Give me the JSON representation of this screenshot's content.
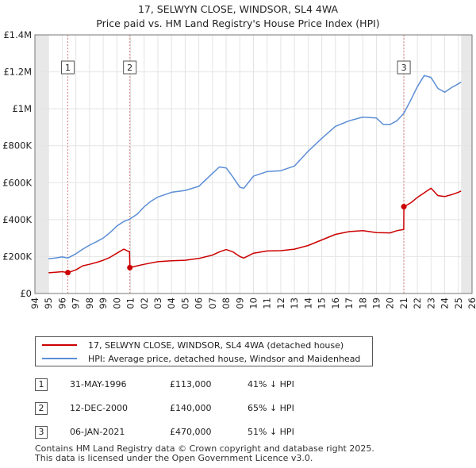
{
  "chart_data": {
    "type": "line",
    "title": "17, SELWYN CLOSE, WINDSOR, SL4 4WA",
    "subtitle": "Price paid vs. HM Land Registry's House Price Index (HPI)",
    "xlim": [
      1994,
      2026
    ],
    "ylim": [
      0,
      1400000
    ],
    "xticks": [
      "1994",
      "1995",
      "1996",
      "1997",
      "1998",
      "1999",
      "2000",
      "2001",
      "2002",
      "2003",
      "2004",
      "2005",
      "2006",
      "2007",
      "2008",
      "2009",
      "2010",
      "2011",
      "2012",
      "2013",
      "2014",
      "2015",
      "2016",
      "2017",
      "2018",
      "2019",
      "2020",
      "2021",
      "2022",
      "2023",
      "2024",
      "2025",
      "2026"
    ],
    "yticks": [
      {
        "value": 0,
        "label": "£0"
      },
      {
        "value": 200000,
        "label": "£200K"
      },
      {
        "value": 400000,
        "label": "£400K"
      },
      {
        "value": 600000,
        "label": "£600K"
      },
      {
        "value": 800000,
        "label": "£800K"
      },
      {
        "value": 1000000,
        "label": "£1M"
      },
      {
        "value": 1200000,
        "label": "£1.2M"
      },
      {
        "value": 1400000,
        "label": "£1.4M"
      }
    ],
    "data_start": 1995.0,
    "data_end": 2025.2,
    "series": [
      {
        "name": "17, SELWYN CLOSE, WINDSOR, SL4 4WA (detached house)",
        "color": "#cc0000",
        "x": [
          1995.0,
          1995.5,
          1996.0,
          1996.41,
          1996.42,
          1997.0,
          1997.5,
          1998.0,
          1998.5,
          1999.0,
          1999.5,
          2000.0,
          2000.5,
          2000.93,
          2000.95,
          2001.5,
          2002.0,
          2003.0,
          2004.0,
          2005.0,
          2006.0,
          2007.0,
          2007.5,
          2008.0,
          2008.5,
          2009.0,
          2009.3,
          2010.0,
          2011.0,
          2012.0,
          2013.0,
          2014.0,
          2015.0,
          2016.0,
          2017.0,
          2018.0,
          2019.0,
          2020.0,
          2020.5,
          2021.0,
          2021.01,
          2021.5,
          2022.0,
          2022.5,
          2023.0,
          2023.5,
          2024.0,
          2024.5,
          2025.0,
          2025.2
        ],
        "values": [
          112000,
          115000,
          118000,
          113000,
          113000,
          128000,
          150000,
          158000,
          168000,
          180000,
          196000,
          218000,
          240000,
          225000,
          140000,
          150000,
          158000,
          172000,
          177000,
          180000,
          190000,
          208000,
          225000,
          238000,
          225000,
          200000,
          192000,
          218000,
          230000,
          232000,
          240000,
          260000,
          290000,
          320000,
          335000,
          340000,
          330000,
          328000,
          340000,
          347000,
          470000,
          490000,
          520000,
          545000,
          570000,
          530000,
          525000,
          535000,
          548000,
          555000
        ]
      },
      {
        "name": "HPI: Average price, detached house, Windsor and Maidenhead",
        "color": "#5b8ed6",
        "x": [
          1995.0,
          1995.5,
          1996.0,
          1996.41,
          1997.0,
          1997.5,
          1998.0,
          1998.5,
          1999.0,
          1999.5,
          2000.0,
          2000.5,
          2000.93,
          2001.5,
          2002.0,
          2002.5,
          2003.0,
          2004.0,
          2005.0,
          2006.0,
          2007.0,
          2007.5,
          2008.0,
          2008.5,
          2009.0,
          2009.3,
          2010.0,
          2011.0,
          2012.0,
          2013.0,
          2014.0,
          2015.0,
          2016.0,
          2017.0,
          2018.0,
          2019.0,
          2019.5,
          2020.0,
          2020.5,
          2021.0,
          2021.5,
          2022.0,
          2022.5,
          2023.0,
          2023.5,
          2024.0,
          2024.5,
          2025.0,
          2025.2
        ],
        "values": [
          188000,
          192000,
          198000,
          192000,
          215000,
          240000,
          262000,
          280000,
          300000,
          330000,
          365000,
          390000,
          402000,
          430000,
          470000,
          500000,
          522000,
          548000,
          558000,
          580000,
          650000,
          685000,
          680000,
          630000,
          575000,
          570000,
          635000,
          660000,
          665000,
          690000,
          770000,
          840000,
          905000,
          935000,
          955000,
          950000,
          915000,
          915000,
          935000,
          975000,
          1045000,
          1120000,
          1180000,
          1170000,
          1110000,
          1090000,
          1115000,
          1135000,
          1145000
        ]
      }
    ],
    "markers": [
      {
        "label": "1",
        "x": 1996.41,
        "value": 113000
      },
      {
        "label": "2",
        "x": 2000.95,
        "value": 140000
      },
      {
        "label": "3",
        "x": 2021.01,
        "value": 470000
      }
    ]
  },
  "legend": {
    "property_label": "17, SELWYN CLOSE, WINDSOR, SL4 4WA (detached house)",
    "property_color": "#cc0000",
    "hpi_label": "HPI: Average price, detached house, Windsor and Maidenhead",
    "hpi_color": "#5b8ed6"
  },
  "transactions": [
    {
      "num": "1",
      "date": "31-MAY-1996",
      "price": "£113,000",
      "hpi": "41% ↓ HPI"
    },
    {
      "num": "2",
      "date": "12-DEC-2000",
      "price": "£140,000",
      "hpi": "65% ↓ HPI"
    },
    {
      "num": "3",
      "date": "06-JAN-2021",
      "price": "£470,000",
      "hpi": "51% ↓ HPI"
    }
  ],
  "footer": {
    "line1": "Contains HM Land Registry data © Crown copyright and database right 2025.",
    "line2": "This data is licensed under the Open Government Licence v3.0."
  }
}
